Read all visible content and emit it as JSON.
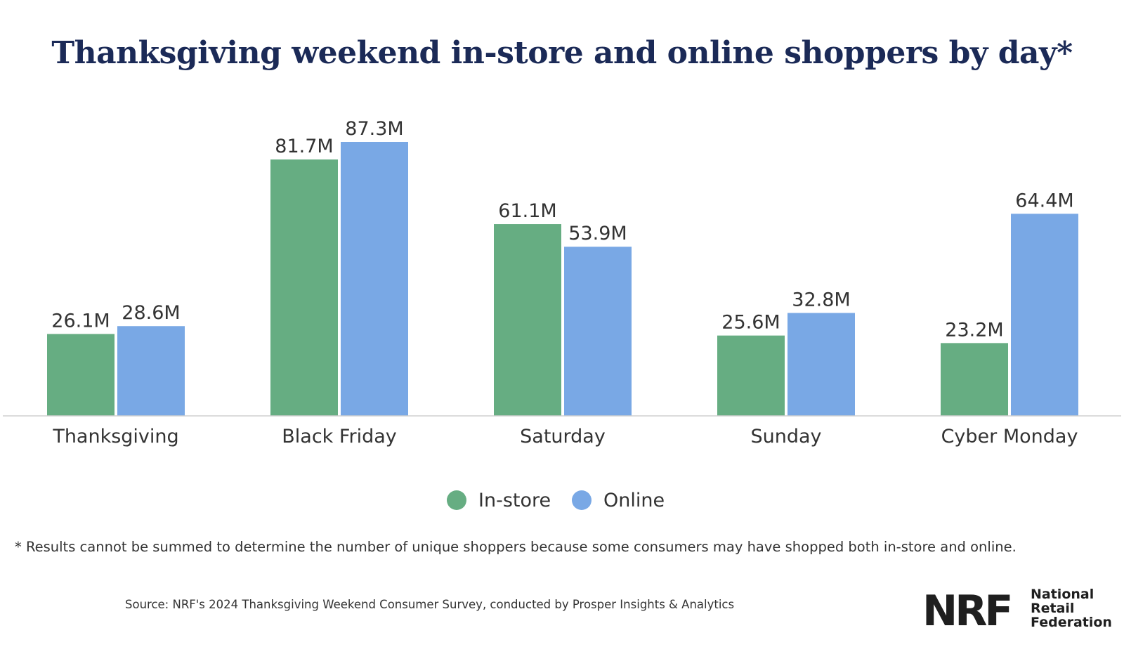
{
  "chart_data": {
    "type": "bar",
    "title": "Thanksgiving weekend in-store and online shoppers by day*",
    "categories": [
      "Thanksgiving",
      "Black Friday",
      "Saturday",
      "Sunday",
      "Cyber Monday"
    ],
    "series": [
      {
        "name": "In-store",
        "color": "#66ad82",
        "values": [
          26.1,
          81.7,
          61.1,
          25.6,
          23.2
        ],
        "labels": [
          "26.1M",
          "81.7M",
          "61.1M",
          "25.6M",
          "23.2M"
        ]
      },
      {
        "name": "Online",
        "color": "#79a8e5",
        "values": [
          28.6,
          87.3,
          53.9,
          32.8,
          64.4
        ],
        "labels": [
          "28.6M",
          "87.3M",
          "53.9M",
          "32.8M",
          "64.4M"
        ]
      }
    ],
    "xlabel": "",
    "ylabel": "",
    "ylim": [
      0,
      87.3
    ],
    "grid": false,
    "legend_position": "bottom-center",
    "axis_color": "#d0d0d0"
  },
  "footnote": "* Results cannot be summed to determine the number of unique shoppers because some consumers may have shopped both in-store and online.",
  "source": "Source: NRF's 2024 Thanksgiving Weekend Consumer Survey, conducted by Prosper Insights & Analytics",
  "logo": {
    "mark": "NRF",
    "line1": "National",
    "line2": "Retail",
    "line3": "Federation"
  }
}
